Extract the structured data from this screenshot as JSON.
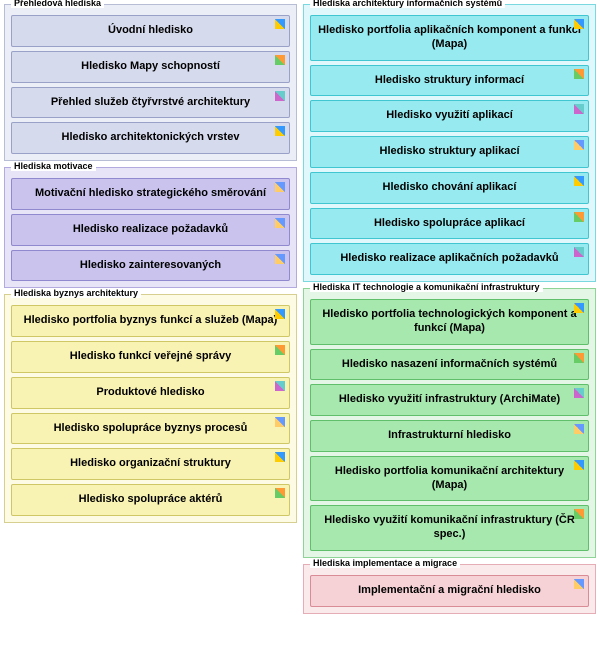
{
  "panels": [
    {
      "col": 0,
      "title": "Přehledová hlediska",
      "panel_bg": "#ebedf7",
      "panel_border": "#b8bdd6",
      "item_bg": "#d6daed",
      "item_border": "#9aa1c9",
      "items": [
        {
          "label": "Úvodní hledisko",
          "icon": "ic-a"
        },
        {
          "label": "Hledisko Mapy schopností",
          "icon": "ic-b"
        },
        {
          "label": "Přehled služeb čtyřvrstvé architektury",
          "icon": "ic-c"
        },
        {
          "label": "Hledisko architektonických vrstev",
          "icon": "ic-a"
        }
      ]
    },
    {
      "col": 0,
      "title": "Hlediska motivace",
      "panel_bg": "#e7e4f8",
      "panel_border": "#b3abe0",
      "item_bg": "#c9c3ed",
      "item_border": "#9189d0",
      "items": [
        {
          "label": "Motivační hledisko strategického směrování",
          "icon": "ic-d"
        },
        {
          "label": "Hledisko realizace požadavků",
          "icon": "ic-d"
        },
        {
          "label": "Hledisko zainteresovaných",
          "icon": "ic-d"
        }
      ]
    },
    {
      "col": 0,
      "title": "Hlediska byznys architektury",
      "panel_bg": "#fdfbe4",
      "panel_border": "#d6cf8f",
      "item_bg": "#f9f3b3",
      "item_border": "#cfc766",
      "items": [
        {
          "label": "Hledisko portfolia byznys funkcí a služeb (Mapa)",
          "icon": "ic-a"
        },
        {
          "label": "Hledisko funkcí veřejné správy",
          "icon": "ic-b"
        },
        {
          "label": "Produktové hledisko",
          "icon": "ic-c"
        },
        {
          "label": "Hledisko spolupráce byznys procesů",
          "icon": "ic-d"
        },
        {
          "label": "Hledisko organizační struktury",
          "icon": "ic-a"
        },
        {
          "label": "Hledisko spolupráce aktérů",
          "icon": "ic-b"
        }
      ]
    },
    {
      "col": 1,
      "title": "Hlediska architektury informačních systémů",
      "panel_bg": "#e0f8fb",
      "panel_border": "#7ad8e0",
      "item_bg": "#97ebf0",
      "item_border": "#3fc6d1",
      "items": [
        {
          "label": "Hledisko portfolia aplikačních komponent a funkcí (Mapa)",
          "icon": "ic-a"
        },
        {
          "label": "Hledisko struktury informací",
          "icon": "ic-b"
        },
        {
          "label": "Hledisko využití aplikací",
          "icon": "ic-c"
        },
        {
          "label": "Hledisko struktury aplikací",
          "icon": "ic-d"
        },
        {
          "label": "Hledisko chování aplikací",
          "icon": "ic-a"
        },
        {
          "label": "Hledisko spolupráce aplikací",
          "icon": "ic-b"
        },
        {
          "label": "Hledisko realizace aplikačních požadavků",
          "icon": "ic-c"
        }
      ]
    },
    {
      "col": 1,
      "title": "Hlediska IT technologie a komunikační infrastruktury",
      "panel_bg": "#e4f7e6",
      "panel_border": "#8fd497",
      "item_bg": "#a6e8ae",
      "item_border": "#5fbf6a",
      "items": [
        {
          "label": "Hledisko portfolia technologických komponent a funkcí (Mapa)",
          "icon": "ic-a"
        },
        {
          "label": "Hledisko nasazení informačních systémů",
          "icon": "ic-b"
        },
        {
          "label": "Hledisko využití infrastruktury (ArchiMate)",
          "icon": "ic-c"
        },
        {
          "label": "Infrastrukturní hledisko",
          "icon": "ic-d"
        },
        {
          "label": "Hledisko portfolia komunikační architektury (Mapa)",
          "icon": "ic-a"
        },
        {
          "label": "Hledisko využití komunikační infrastruktury (ČR spec.)",
          "icon": "ic-b"
        }
      ]
    },
    {
      "col": 1,
      "title": "Hlediska implementace a migrace",
      "panel_bg": "#fbeaec",
      "panel_border": "#e5aeb6",
      "item_bg": "#f6d1d6",
      "item_border": "#d98b96",
      "items": [
        {
          "label": "Implementační a migrační hledisko",
          "icon": "ic-d"
        }
      ]
    }
  ]
}
